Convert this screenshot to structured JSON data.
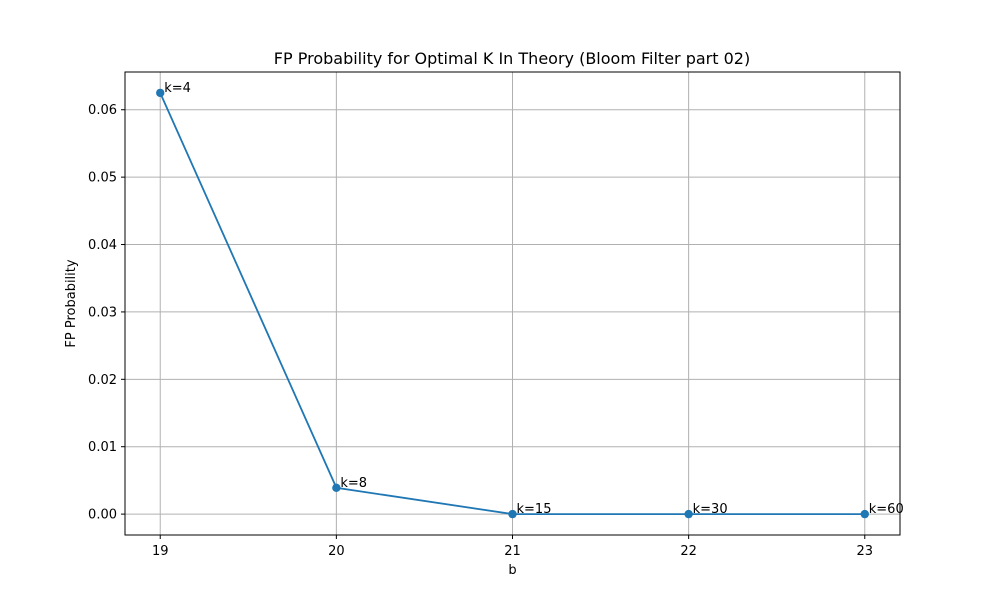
{
  "chart_data": {
    "type": "line",
    "title": "FP Probability for Optimal K In Theory (Bloom Filter part 02)",
    "xlabel": "b",
    "ylabel": "FP Probability",
    "xlim": [
      18.8,
      23.2
    ],
    "ylim": [
      -0.0031,
      0.0656
    ],
    "xticks": [
      19,
      20,
      21,
      22,
      23
    ],
    "xtick_labels": [
      "19",
      "20",
      "21",
      "22",
      "23"
    ],
    "yticks": [
      0.0,
      0.01,
      0.02,
      0.03,
      0.04,
      0.05,
      0.06
    ],
    "ytick_labels": [
      "0.00",
      "0.01",
      "0.02",
      "0.03",
      "0.04",
      "0.05",
      "0.06"
    ],
    "grid": true,
    "series": [
      {
        "color": "#1f77b4",
        "marker": "circle",
        "x": [
          19,
          20,
          21,
          22,
          23
        ],
        "y": [
          0.0625,
          0.0039,
          0.0,
          0.0,
          0.0
        ],
        "labels": [
          "k=4",
          "k=8",
          "k=15",
          "k=30",
          "k=60"
        ]
      }
    ]
  }
}
